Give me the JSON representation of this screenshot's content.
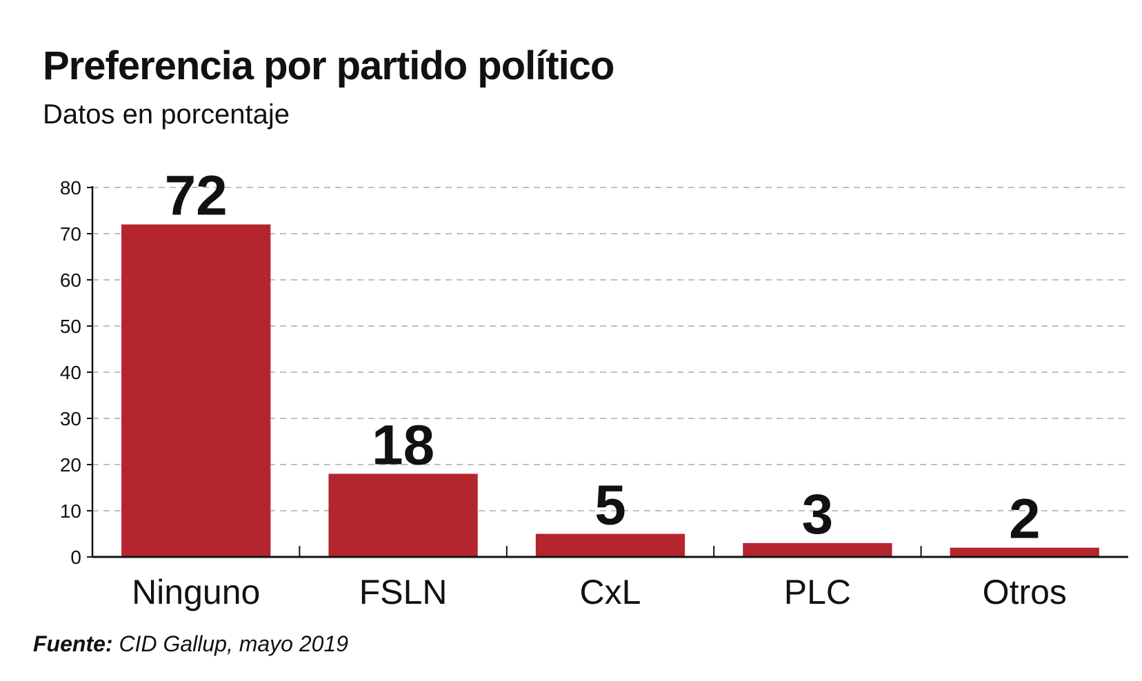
{
  "chart_data": {
    "type": "bar",
    "title": "Preferencia por partido político",
    "subtitle": "Datos en porcentaje",
    "categories": [
      "Ninguno",
      "FSLN",
      "CxL",
      "PLC",
      "Otros"
    ],
    "values": [
      72,
      18,
      5,
      3,
      2
    ],
    "data_labels": [
      "72",
      "18",
      "5",
      "3",
      "2"
    ],
    "ylim": [
      0,
      80
    ],
    "yticks": [
      0,
      10,
      20,
      30,
      40,
      50,
      60,
      70,
      80
    ],
    "xlabel": "",
    "ylabel": "",
    "grid": true,
    "grid_style": "dashed",
    "legend": false,
    "bar_color": "#b5252e",
    "grid_color": "#aaaaaa",
    "axis_color": "#111111"
  },
  "source": {
    "label": "Fuente:",
    "text": "CID Gallup, mayo 2019"
  }
}
